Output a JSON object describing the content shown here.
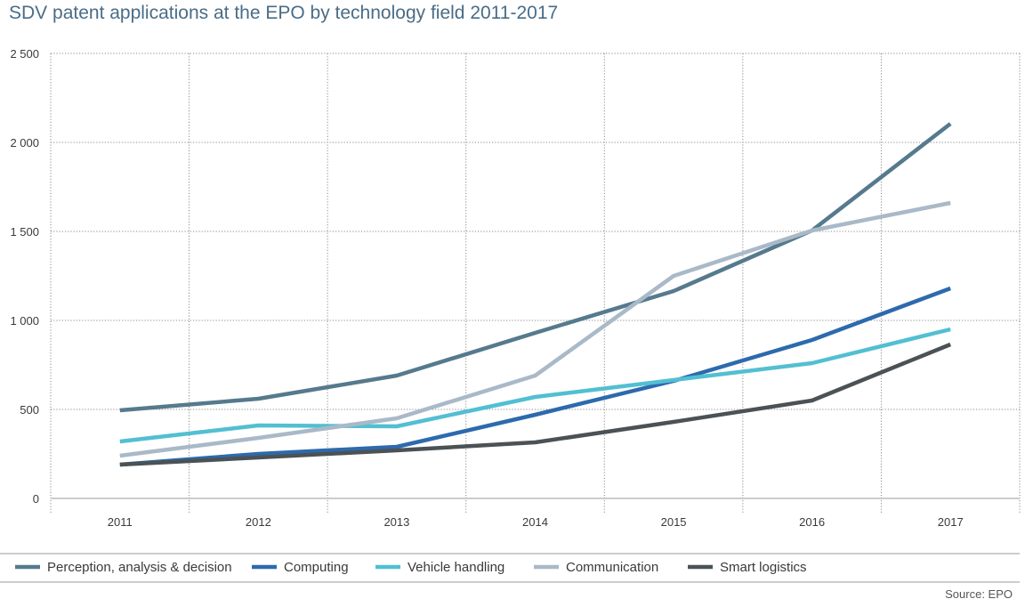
{
  "title": "SDV patent applications at the EPO by technology field 2011-2017",
  "source": "Source: EPO",
  "chart_data": {
    "type": "line",
    "title": "SDV patent applications at the EPO by technology field 2011-2017",
    "xlabel": "",
    "ylabel": "",
    "x": [
      "2011",
      "2012",
      "2013",
      "2014",
      "2015",
      "2016",
      "2017"
    ],
    "ylim": [
      0,
      2500
    ],
    "yticks": [
      0,
      500,
      1000,
      1500,
      2000,
      2500
    ],
    "ytick_labels": [
      "0",
      "500",
      "1 000",
      "1 500",
      "2 000",
      "2 500"
    ],
    "grid": true,
    "legend_position": "bottom",
    "series": [
      {
        "name": "Perception, analysis & decision",
        "color": "#567a8d",
        "values": [
          495,
          560,
          690,
          930,
          1165,
          1505,
          2105
        ]
      },
      {
        "name": "Computing",
        "color": "#2d6aad",
        "values": [
          190,
          250,
          290,
          470,
          660,
          890,
          1180
        ]
      },
      {
        "name": "Vehicle handling",
        "color": "#52bfd2",
        "values": [
          320,
          410,
          405,
          570,
          665,
          760,
          950
        ]
      },
      {
        "name": "Communication",
        "color": "#a9b9c8",
        "values": [
          240,
          340,
          450,
          690,
          1250,
          1505,
          1660
        ]
      },
      {
        "name": "Smart logistics",
        "color": "#4b5256",
        "values": [
          190,
          230,
          270,
          315,
          430,
          550,
          865
        ]
      }
    ]
  }
}
